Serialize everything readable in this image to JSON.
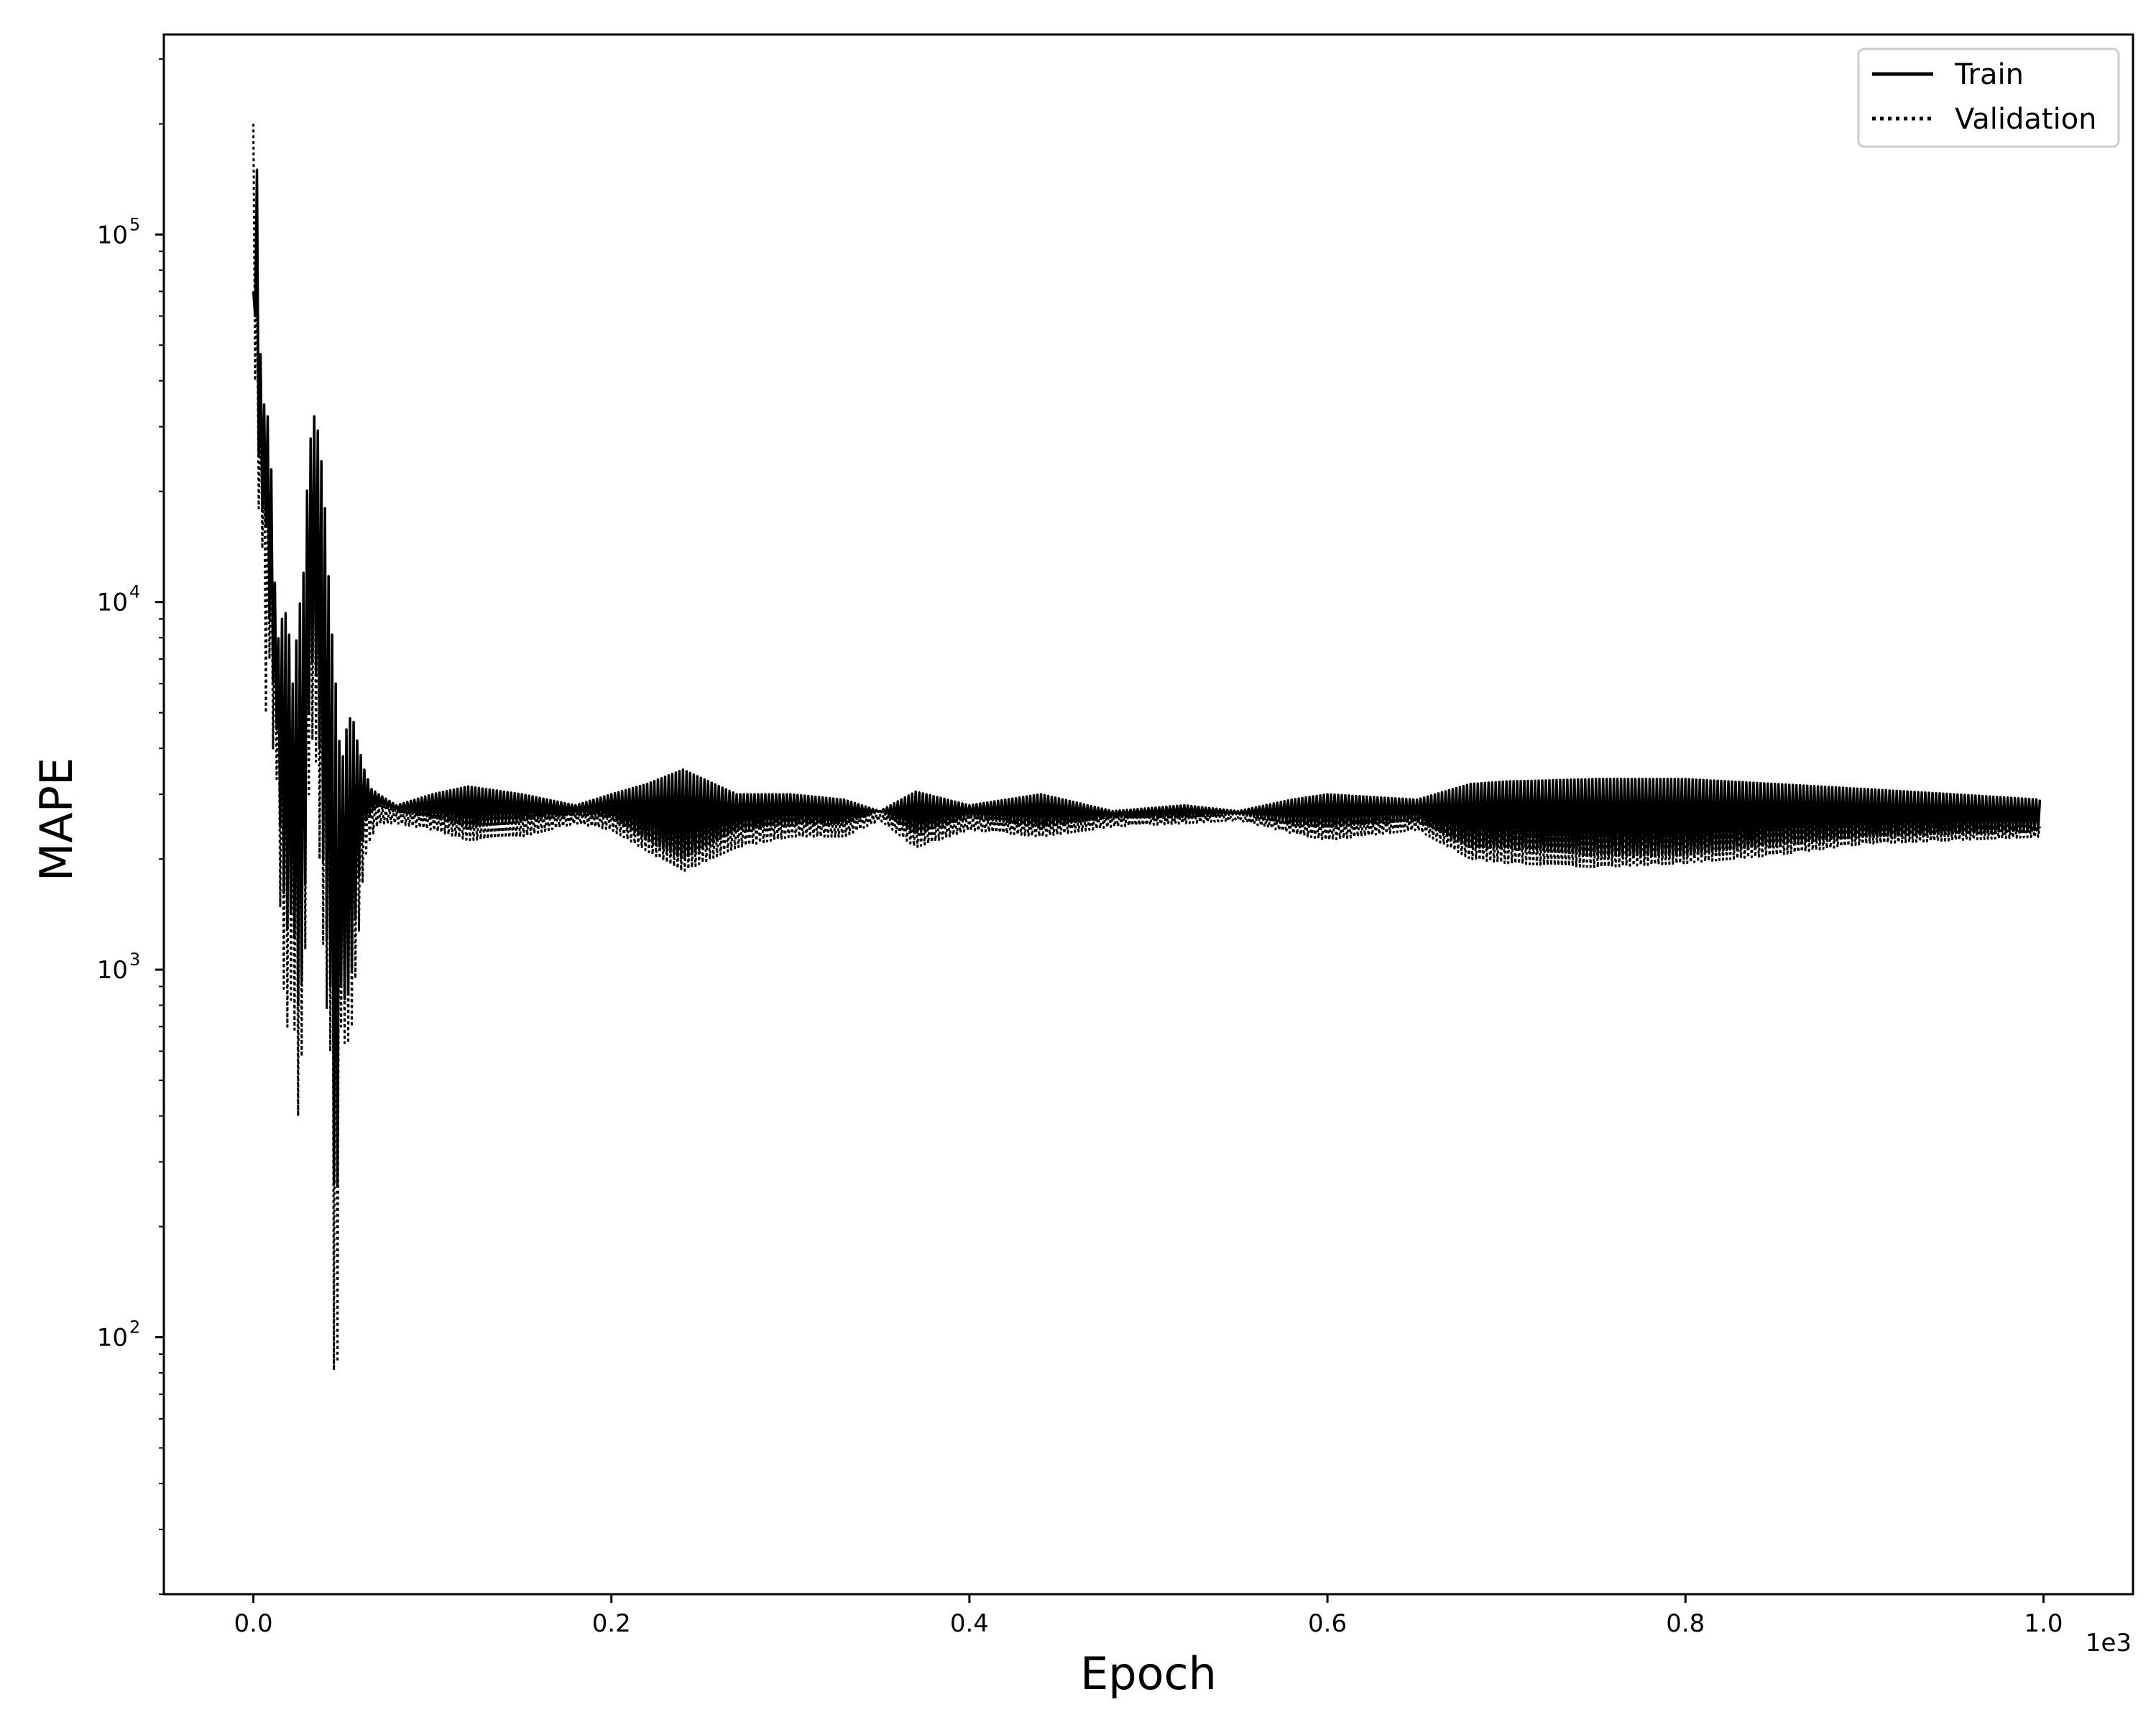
{
  "chart_data": {
    "type": "line",
    "xlabel": "Epoch",
    "ylabel": "MAPE",
    "x_offset_label": "1e3",
    "xlim": [
      -0.05,
      1.05
    ],
    "ylim": [
      20,
      350000
    ],
    "yscale": "log",
    "xticks": [
      {
        "value": 0.0,
        "label": "0.0"
      },
      {
        "value": 0.2,
        "label": "0.2"
      },
      {
        "value": 0.4,
        "label": "0.4"
      },
      {
        "value": 0.6,
        "label": "0.6"
      },
      {
        "value": 0.8,
        "label": "0.8"
      },
      {
        "value": 1.0,
        "label": "1.0"
      }
    ],
    "yticks": [
      {
        "value": 100,
        "base": "10",
        "exp": "2"
      },
      {
        "value": 1000,
        "base": "10",
        "exp": "3"
      },
      {
        "value": 10000,
        "base": "10",
        "exp": "4"
      },
      {
        "value": 100000,
        "base": "10",
        "exp": "5"
      }
    ],
    "legend": {
      "position": "top-right",
      "entries": [
        {
          "name": "Train",
          "style": "solid"
        },
        {
          "name": "Validation",
          "style": "dotted"
        }
      ]
    },
    "grid": false,
    "colors": {
      "line": "#000000",
      "background": "#ffffff"
    },
    "series": [
      {
        "name": "Train",
        "style": "solid",
        "x": [
          0.0,
          0.001,
          0.002,
          0.003,
          0.005,
          0.007,
          0.009,
          0.011,
          0.013,
          0.016,
          0.019,
          0.022,
          0.025,
          0.028,
          0.031,
          0.034,
          0.037,
          0.04,
          0.043,
          0.046,
          0.049,
          0.052,
          0.055,
          0.058,
          0.062,
          0.066,
          0.07,
          0.08,
          0.1,
          0.12,
          0.15,
          0.18,
          0.2,
          0.22,
          0.24,
          0.27,
          0.3,
          0.33,
          0.35,
          0.37,
          0.4,
          0.44,
          0.48,
          0.52,
          0.55,
          0.58,
          0.6,
          0.65,
          0.68,
          0.7,
          0.75,
          0.8,
          0.85,
          0.9,
          0.95,
          0.998
        ],
        "y_upper": [
          70000,
          240000,
          150000,
          62000,
          36000,
          33000,
          31000,
          17000,
          7500,
          9000,
          9500,
          6000,
          9000,
          12000,
          26000,
          32000,
          28000,
          18000,
          9500,
          6000,
          3500,
          4500,
          5000,
          4200,
          3500,
          3100,
          3000,
          2800,
          3000,
          3150,
          3000,
          2800,
          3000,
          3200,
          3500,
          3000,
          3000,
          2900,
          2700,
          3050,
          2800,
          3000,
          2700,
          2800,
          2700,
          2900,
          3000,
          2900,
          3200,
          3250,
          3300,
          3300,
          3200,
          3100,
          3000,
          2900
        ],
        "y_lower": [
          70000,
          60000,
          30000,
          25000,
          18000,
          16000,
          9000,
          6000,
          4500,
          1800,
          1300,
          1500,
          800,
          1000,
          5000,
          8000,
          4000,
          1400,
          900,
          140,
          900,
          800,
          1000,
          1600,
          2500,
          2700,
          2800,
          2700,
          2600,
          2450,
          2550,
          2650,
          2600,
          2250,
          2000,
          2400,
          2500,
          2500,
          2700,
          2350,
          2600,
          2450,
          2600,
          2600,
          2650,
          2500,
          2450,
          2550,
          2150,
          2150,
          2050,
          2050,
          2200,
          2300,
          2350,
          2400
        ]
      },
      {
        "name": "Validation",
        "style": "dotted",
        "x": [
          0.0,
          0.001,
          0.002,
          0.003,
          0.005,
          0.007,
          0.009,
          0.011,
          0.013,
          0.016,
          0.019,
          0.022,
          0.025,
          0.028,
          0.031,
          0.034,
          0.037,
          0.04,
          0.043,
          0.046,
          0.049,
          0.052,
          0.055,
          0.058,
          0.062,
          0.066,
          0.07,
          0.08,
          0.1,
          0.12,
          0.15,
          0.18,
          0.2,
          0.22,
          0.24,
          0.27,
          0.3,
          0.33,
          0.35,
          0.37,
          0.4,
          0.44,
          0.48,
          0.52,
          0.55,
          0.58,
          0.6,
          0.65,
          0.68,
          0.7,
          0.75,
          0.8,
          0.85,
          0.9,
          0.95,
          0.998
        ],
        "y_upper": [
          200000,
          190000,
          80000,
          50000,
          30000,
          25000,
          20000,
          14000,
          7000,
          8000,
          8500,
          5000,
          8000,
          11000,
          22000,
          26000,
          22000,
          15000,
          8000,
          5000,
          3000,
          4000,
          4500,
          3800,
          3200,
          2900,
          2800,
          2700,
          2700,
          2650,
          2700,
          2650,
          2700,
          2600,
          2500,
          2600,
          2650,
          2600,
          2650,
          2550,
          2600,
          2550,
          2650,
          2650,
          2600,
          2550,
          2550,
          2600,
          2450,
          2500,
          2450,
          2450,
          2500,
          2500,
          2500,
          2450
        ],
        "y_lower": [
          200000,
          40000,
          25000,
          18000,
          14000,
          5000,
          7000,
          4000,
          3300,
          1000,
          700,
          900,
          400,
          700,
          3000,
          5000,
          2000,
          900,
          600,
          30,
          700,
          600,
          700,
          1100,
          2000,
          2300,
          2500,
          2500,
          2400,
          2250,
          2300,
          2500,
          2400,
          2100,
          1850,
          2150,
          2300,
          2300,
          2550,
          2150,
          2400,
          2300,
          2450,
          2500,
          2550,
          2350,
          2250,
          2400,
          2000,
          1950,
          1900,
          1950,
          2050,
          2200,
          2250,
          2300
        ]
      }
    ]
  }
}
